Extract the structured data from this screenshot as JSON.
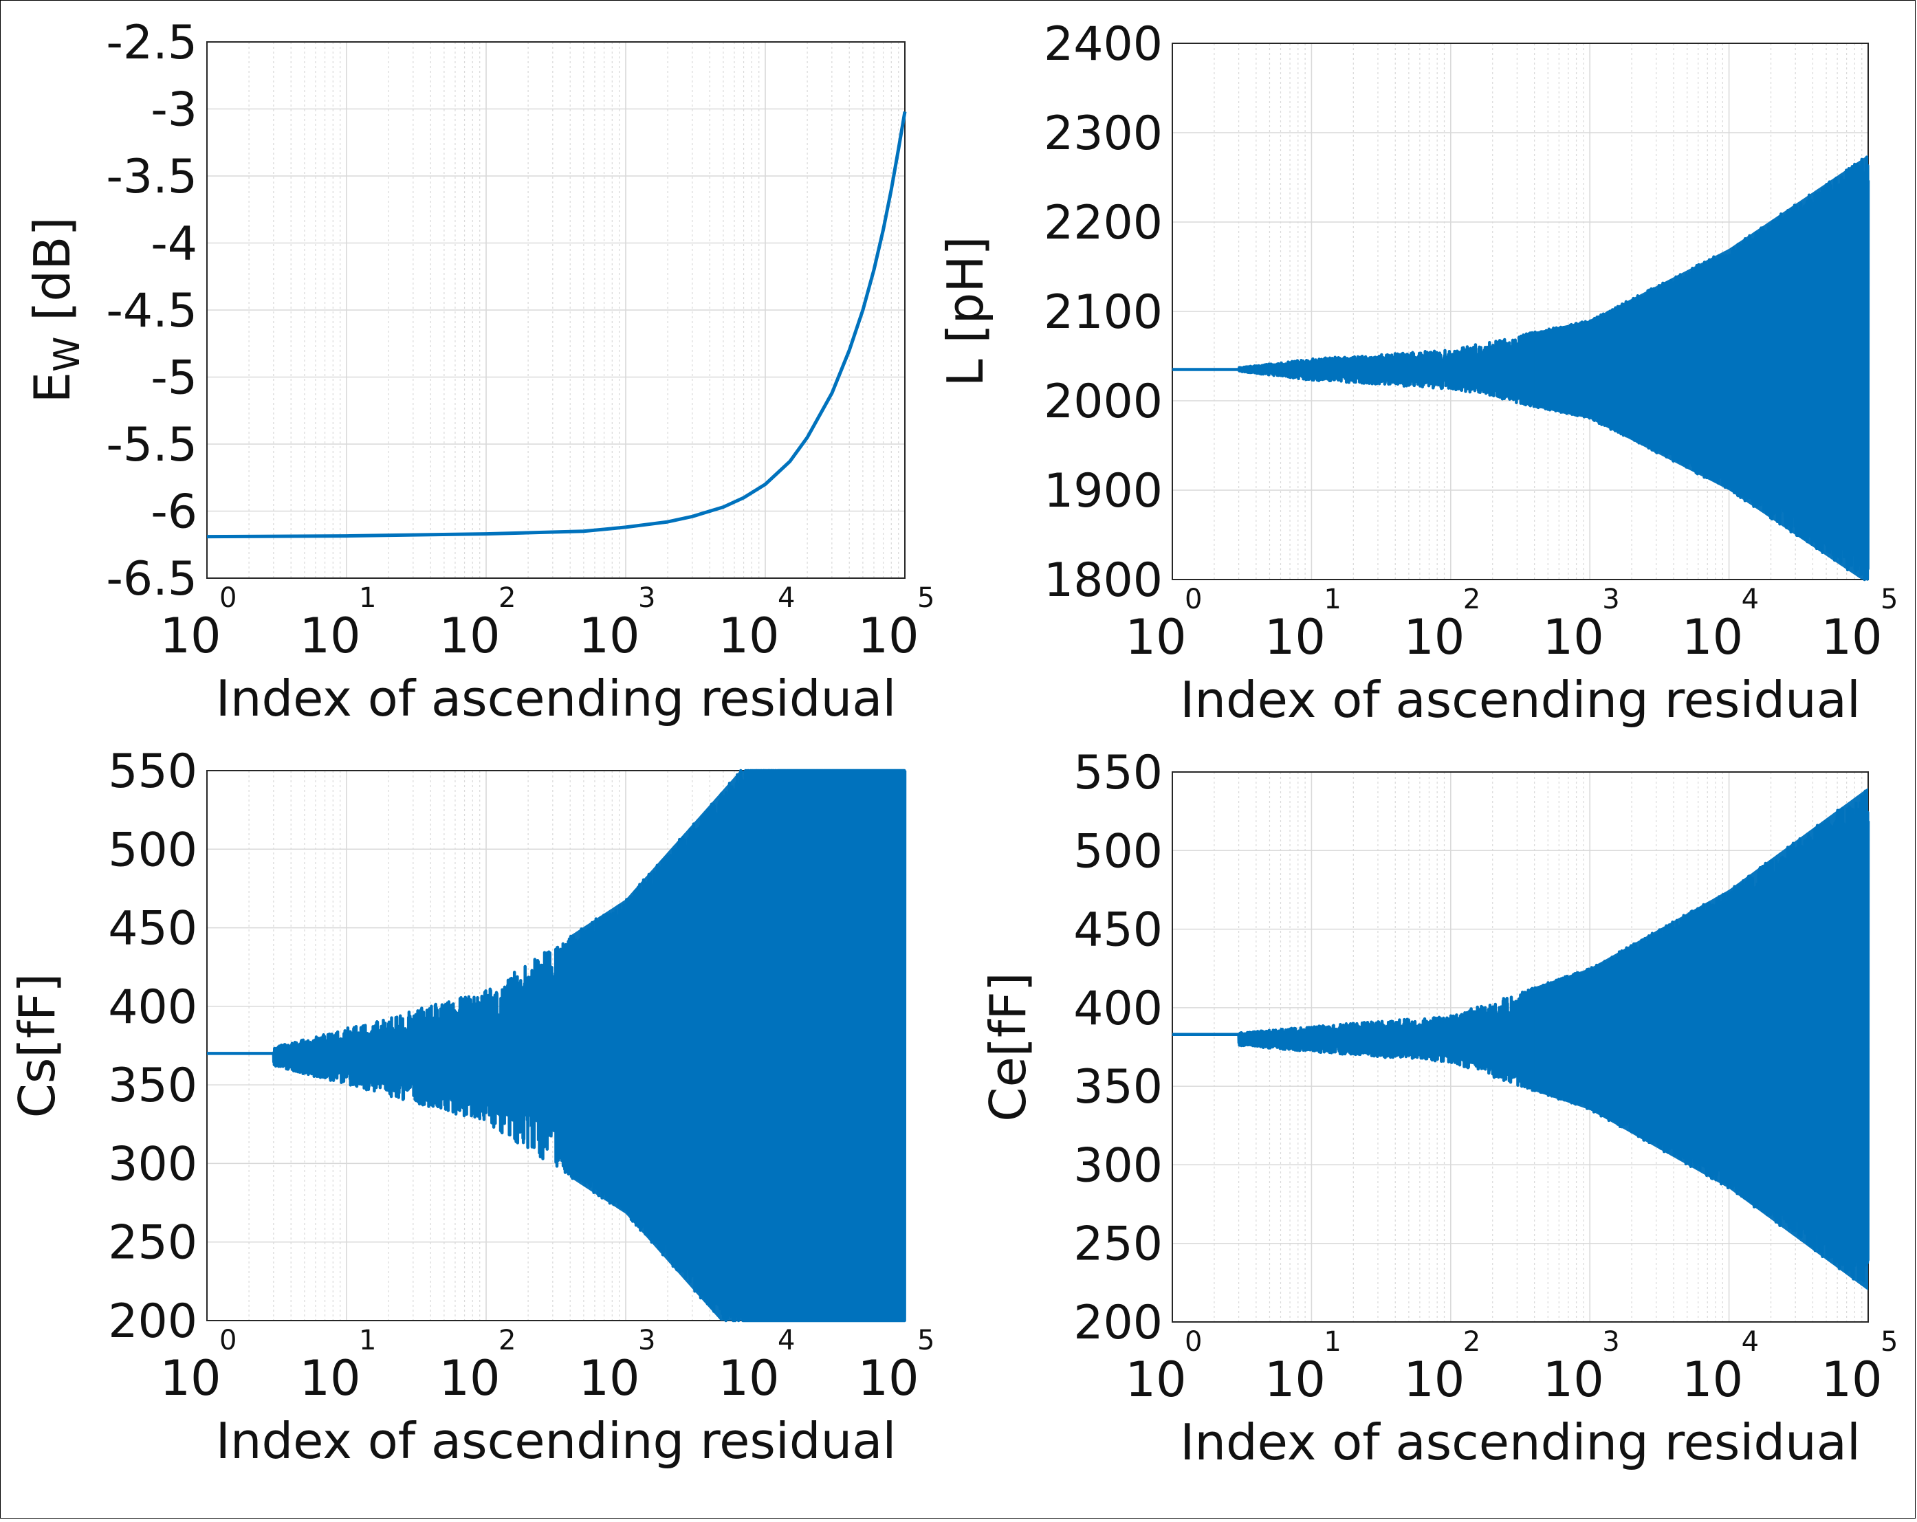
{
  "figure": {
    "title": ""
  },
  "colors": {
    "series": "#0072bd",
    "grid": "#d9d9d9",
    "axis": "#262626"
  },
  "chart_data": [
    {
      "type": "line",
      "title": "",
      "xlabel": "Index of ascending residual",
      "ylabel": "E_W [dB]",
      "ylabel_main": "E",
      "ylabel_sub": "W",
      "ylabel_tail": " [dB]",
      "xscale": "log",
      "xlim": [
        1,
        100000
      ],
      "ylim": [
        -6.5,
        -2.5
      ],
      "xticks": [
        1,
        10,
        100,
        1000,
        10000,
        100000
      ],
      "xtick_labels": [
        {
          "base": "10",
          "exp": "0"
        },
        {
          "base": "10",
          "exp": "1"
        },
        {
          "base": "10",
          "exp": "2"
        },
        {
          "base": "10",
          "exp": "3"
        },
        {
          "base": "10",
          "exp": "4"
        },
        {
          "base": "10",
          "exp": "5"
        }
      ],
      "yticks": [
        -6.5,
        -6,
        -5.5,
        -5,
        -4.5,
        -4,
        -3.5,
        -3,
        -2.5
      ],
      "ytick_labels": [
        "-6.5",
        "-6",
        "-5.5",
        "-5",
        "-4.5",
        "-4",
        "-3.5",
        "-3",
        "-2.5"
      ],
      "grid": true,
      "series": [
        {
          "name": "E_W",
          "x": [
            1,
            10,
            100,
            500,
            1000,
            2000,
            3000,
            5000,
            7000,
            10000,
            15000,
            20000,
            30000,
            40000,
            50000,
            60000,
            70000,
            80000,
            90000,
            100000
          ],
          "values": [
            -6.19,
            -6.185,
            -6.17,
            -6.15,
            -6.12,
            -6.08,
            -6.04,
            -5.97,
            -5.9,
            -5.8,
            -5.63,
            -5.45,
            -5.12,
            -4.8,
            -4.5,
            -4.2,
            -3.9,
            -3.6,
            -3.3,
            -3.02
          ]
        }
      ]
    },
    {
      "type": "line",
      "title": "",
      "xlabel": "Index of ascending residual",
      "ylabel": "L [pH]",
      "xscale": "log",
      "xlim": [
        1,
        100000
      ],
      "ylim": [
        1800,
        2400
      ],
      "xticks": [
        1,
        10,
        100,
        1000,
        10000,
        100000
      ],
      "xtick_labels": [
        {
          "base": "10",
          "exp": "0"
        },
        {
          "base": "10",
          "exp": "1"
        },
        {
          "base": "10",
          "exp": "2"
        },
        {
          "base": "10",
          "exp": "3"
        },
        {
          "base": "10",
          "exp": "4"
        },
        {
          "base": "10",
          "exp": "5"
        }
      ],
      "yticks": [
        1800,
        1900,
        2000,
        2100,
        2200,
        2300,
        2400
      ],
      "ytick_labels": [
        "1800",
        "1900",
        "2000",
        "2100",
        "2200",
        "2300",
        "2400"
      ],
      "grid": true,
      "series": [
        {
          "name": "L",
          "center": 2035,
          "start": 2035,
          "flat_until": 3,
          "envelope": [
            {
              "x": 3,
              "amp": 2
            },
            {
              "x": 10,
              "amp": 12
            },
            {
              "x": 100,
              "amp": 22
            },
            {
              "x": 1000,
              "amp": 55
            },
            {
              "x": 10000,
              "amp": 135
            },
            {
              "x": 100000,
              "amp": 240
            }
          ]
        }
      ]
    },
    {
      "type": "line",
      "title": "",
      "xlabel": "Index of ascending residual",
      "ylabel": "Cs[fF]",
      "xscale": "log",
      "xlim": [
        1,
        100000
      ],
      "ylim": [
        200,
        550
      ],
      "xticks": [
        1,
        10,
        100,
        1000,
        10000,
        100000
      ],
      "xtick_labels": [
        {
          "base": "10",
          "exp": "0"
        },
        {
          "base": "10",
          "exp": "1"
        },
        {
          "base": "10",
          "exp": "2"
        },
        {
          "base": "10",
          "exp": "3"
        },
        {
          "base": "10",
          "exp": "4"
        },
        {
          "base": "10",
          "exp": "5"
        }
      ],
      "yticks": [
        200,
        250,
        300,
        350,
        400,
        450,
        500,
        550
      ],
      "ytick_labels": [
        "200",
        "250",
        "300",
        "350",
        "400",
        "450",
        "500",
        "550"
      ],
      "grid": true,
      "series": [
        {
          "name": "Cs",
          "center": 368,
          "start": 370,
          "flat_until": 3,
          "envelope": [
            {
              "x": 3,
              "amp": 6
            },
            {
              "x": 10,
              "amp": 18
            },
            {
              "x": 100,
              "amp": 42
            },
            {
              "x": 1000,
              "amp": 100
            },
            {
              "x": 10000,
              "amp": 200
            },
            {
              "x": 100000,
              "amp": 330
            }
          ]
        }
      ]
    },
    {
      "type": "line",
      "title": "",
      "xlabel": "Index of ascending residual",
      "ylabel": "Ce[fF]",
      "xscale": "log",
      "xlim": [
        1,
        100000
      ],
      "ylim": [
        200,
        550
      ],
      "xticks": [
        1,
        10,
        100,
        1000,
        10000,
        100000
      ],
      "xtick_labels": [
        {
          "base": "10",
          "exp": "0"
        },
        {
          "base": "10",
          "exp": "1"
        },
        {
          "base": "10",
          "exp": "2"
        },
        {
          "base": "10",
          "exp": "3"
        },
        {
          "base": "10",
          "exp": "4"
        },
        {
          "base": "10",
          "exp": "5"
        }
      ],
      "yticks": [
        200,
        250,
        300,
        350,
        400,
        450,
        500,
        550
      ],
      "ytick_labels": [
        "200",
        "250",
        "300",
        "350",
        "400",
        "450",
        "500",
        "550"
      ],
      "grid": true,
      "series": [
        {
          "name": "Ce",
          "center": 380,
          "start": 383,
          "flat_until": 3,
          "envelope": [
            {
              "x": 3,
              "amp": 4
            },
            {
              "x": 10,
              "amp": 8
            },
            {
              "x": 100,
              "amp": 15
            },
            {
              "x": 1000,
              "amp": 45
            },
            {
              "x": 10000,
              "amp": 95
            },
            {
              "x": 100000,
              "amp": 160
            }
          ]
        }
      ]
    }
  ]
}
